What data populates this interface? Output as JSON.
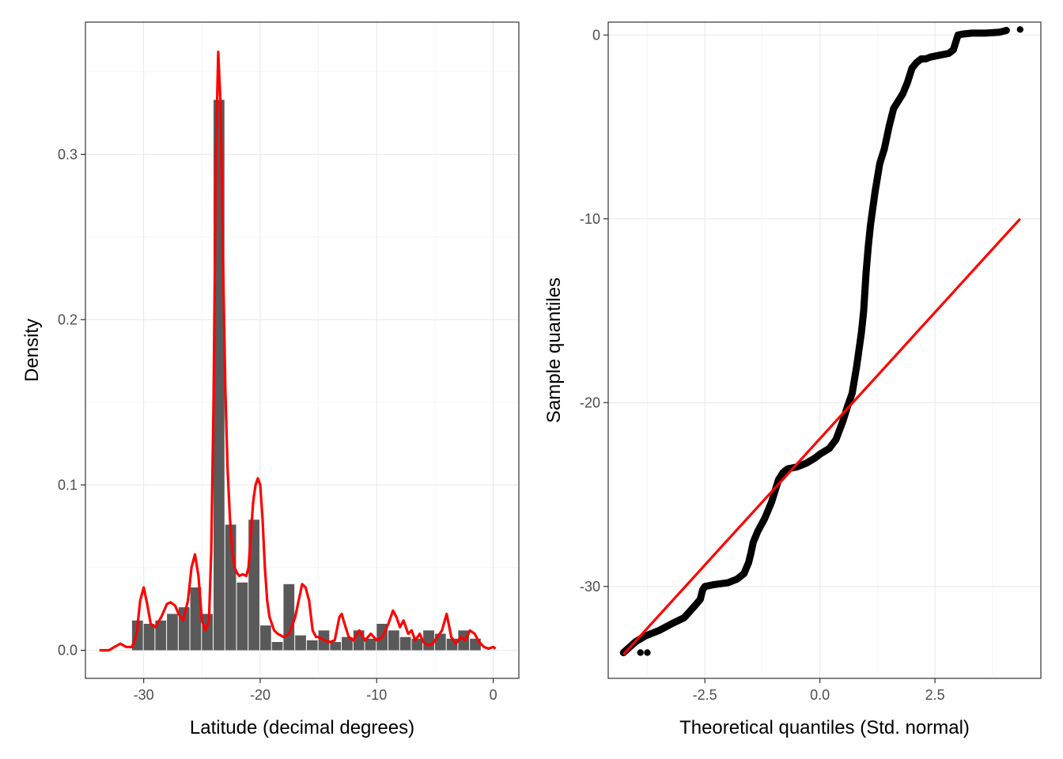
{
  "chart_data": [
    {
      "type": "bar",
      "panel": "left",
      "xlabel": "Latitude (decimal degrees)",
      "ylabel": "Density",
      "xlim": [
        -35,
        2.2
      ],
      "ylim": [
        -0.017,
        0.38
      ],
      "x_ticks": [
        -30,
        -20,
        -10,
        0
      ],
      "x_tick_labels": [
        "-30",
        "-20",
        "-10",
        "0"
      ],
      "y_ticks": [
        0.0,
        0.1,
        0.2,
        0.3
      ],
      "y_tick_labels": [
        "0.0",
        "0.1",
        "0.2",
        "0.3"
      ],
      "grid": true,
      "bins": {
        "start": -31,
        "width": 1,
        "values": [
          0.018,
          0.016,
          0.018,
          0.022,
          0.026,
          0.038,
          0.022,
          0.333,
          0.076,
          0.041,
          0.079,
          0.015,
          0.005,
          0.04,
          0.009,
          0.006,
          0.012,
          0.005,
          0.008,
          0.012,
          0.007,
          0.016,
          0.012,
          0.008,
          0.007,
          0.012,
          0.01,
          0.007,
          0.012,
          0.007
        ]
      },
      "density_series": {
        "name": "",
        "color": "#ff0000",
        "x": [
          -33.8,
          -33,
          -32.5,
          -32,
          -31.5,
          -31,
          -30.6,
          -30.3,
          -30,
          -29.7,
          -29.4,
          -29,
          -28.5,
          -28,
          -27.7,
          -27.3,
          -27,
          -26.6,
          -26.2,
          -25.9,
          -25.6,
          -25.3,
          -25,
          -24.7,
          -24.4,
          -24.2,
          -24,
          -23.8,
          -23.6,
          -23.4,
          -23.2,
          -23,
          -22.8,
          -22.6,
          -22.4,
          -22.2,
          -22,
          -21.8,
          -21.5,
          -21.2,
          -21,
          -20.8,
          -20.6,
          -20.4,
          -20.2,
          -20,
          -19.8,
          -19.6,
          -19.4,
          -19.2,
          -19,
          -18.8,
          -18.5,
          -18,
          -17.5,
          -17,
          -16.7,
          -16.4,
          -16.1,
          -15.8,
          -15.5,
          -15.2,
          -15,
          -14.5,
          -14,
          -13.6,
          -13.2,
          -13,
          -12.8,
          -12.4,
          -12,
          -11.5,
          -11,
          -10.5,
          -10,
          -9.5,
          -9,
          -8.6,
          -8.3,
          -8,
          -7.7,
          -7.3,
          -7,
          -6.7,
          -6.3,
          -6,
          -5.6,
          -5.2,
          -4.8,
          -4.4,
          -4,
          -3.6,
          -3.2,
          -2.8,
          -2.4,
          -2,
          -1.6,
          -1.2,
          -0.8,
          -0.4,
          0,
          0.2
        ],
        "y": [
          0.0,
          0.0,
          0.002,
          0.004,
          0.002,
          0.002,
          0.01,
          0.03,
          0.038,
          0.028,
          0.016,
          0.014,
          0.02,
          0.028,
          0.029,
          0.027,
          0.022,
          0.018,
          0.03,
          0.05,
          0.058,
          0.045,
          0.018,
          0.012,
          0.018,
          0.06,
          0.15,
          0.3,
          0.362,
          0.33,
          0.24,
          0.16,
          0.11,
          0.08,
          0.06,
          0.05,
          0.047,
          0.045,
          0.046,
          0.045,
          0.05,
          0.07,
          0.09,
          0.1,
          0.104,
          0.1,
          0.08,
          0.05,
          0.03,
          0.02,
          0.016,
          0.012,
          0.01,
          0.008,
          0.01,
          0.02,
          0.03,
          0.04,
          0.038,
          0.03,
          0.012,
          0.008,
          0.008,
          0.006,
          0.005,
          0.006,
          0.02,
          0.022,
          0.017,
          0.008,
          0.006,
          0.012,
          0.006,
          0.01,
          0.006,
          0.008,
          0.016,
          0.024,
          0.02,
          0.014,
          0.018,
          0.01,
          0.012,
          0.006,
          0.01,
          0.005,
          0.003,
          0.004,
          0.008,
          0.012,
          0.022,
          0.008,
          0.004,
          0.008,
          0.006,
          0.012,
          0.01,
          0.005,
          0.002,
          0.001,
          0.002,
          0.001
        ]
      }
    },
    {
      "type": "scatter",
      "panel": "right",
      "xlabel": "Theoretical quantiles (Std. normal)",
      "ylabel": "Sample quantiles",
      "xlim": [
        -4.6,
        4.8
      ],
      "ylim": [
        -35.0,
        0.7
      ],
      "x_ticks": [
        -2.5,
        0.0,
        2.5
      ],
      "x_tick_labels": [
        "-2.5",
        "0.0",
        "2.5"
      ],
      "y_ticks": [
        0,
        -10,
        -20,
        -30
      ],
      "y_tick_labels": [
        "0",
        "-10",
        "-20",
        "-30"
      ],
      "grid": true,
      "qq_curve": {
        "name": "",
        "color": "#000000",
        "x": [
          -4.27,
          -4.0,
          -3.8,
          -3.5,
          -3.2,
          -2.95,
          -2.7,
          -2.6,
          -2.55,
          -2.5,
          -2.3,
          -2.0,
          -1.8,
          -1.65,
          -1.6,
          -1.55,
          -1.5,
          -1.45,
          -1.35,
          -1.2,
          -1.05,
          -0.9,
          -0.8,
          -0.7,
          -0.5,
          -0.3,
          -0.1,
          0.0,
          0.2,
          0.35,
          0.5,
          0.6,
          0.7,
          0.8,
          0.9,
          0.95,
          1.0,
          1.05,
          1.1,
          1.2,
          1.3,
          1.4,
          1.5,
          1.6,
          1.7,
          1.8,
          1.9,
          2.0,
          2.1,
          2.2,
          2.3,
          2.4,
          2.6,
          2.8,
          2.9,
          2.95,
          3.0,
          3.1,
          3.3,
          3.6,
          3.9,
          4.05
        ],
        "y": [
          -33.6,
          -33.0,
          -32.7,
          -32.4,
          -32.0,
          -31.7,
          -31.0,
          -30.7,
          -30.2,
          -30.0,
          -29.9,
          -29.8,
          -29.6,
          -29.3,
          -29.0,
          -28.7,
          -28.2,
          -27.6,
          -27.0,
          -26.3,
          -25.4,
          -24.2,
          -23.8,
          -23.6,
          -23.5,
          -23.3,
          -23.0,
          -22.8,
          -22.5,
          -22.0,
          -21.0,
          -20.2,
          -19.5,
          -18.0,
          -16.2,
          -15.0,
          -13.0,
          -11.5,
          -10.3,
          -8.5,
          -7.0,
          -6.2,
          -5.0,
          -4.0,
          -3.6,
          -3.2,
          -2.6,
          -1.8,
          -1.5,
          -1.3,
          -1.3,
          -1.2,
          -1.1,
          -1.0,
          -0.8,
          -0.4,
          0.0,
          0.05,
          0.1,
          0.1,
          0.15,
          0.25
        ]
      },
      "qq_outliers": {
        "x": [
          -4.27,
          -3.9,
          -3.75,
          4.35
        ],
        "y": [
          -33.6,
          -33.6,
          -33.6,
          0.3
        ]
      },
      "reference_line": {
        "name": "",
        "color": "#ff0000",
        "x": [
          -4.27,
          4.35
        ],
        "y": [
          -33.7,
          -10.0
        ]
      }
    }
  ]
}
